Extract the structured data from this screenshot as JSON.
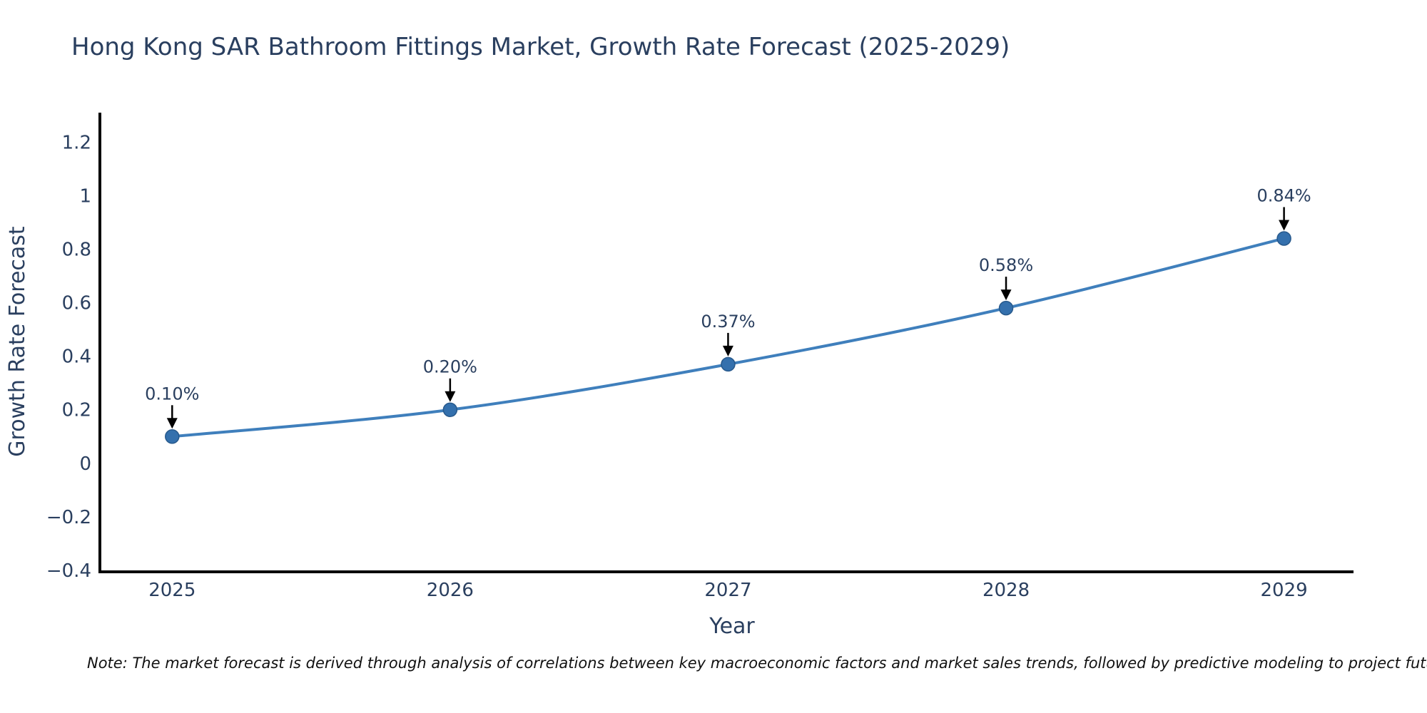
{
  "title": "Hong Kong SAR Bathroom Fittings Market, Growth Rate Forecast (2025-2029)",
  "note": "Note: The market forecast is derived through analysis of correlations between key macroeconomic factors and market sales trends, followed by predictive modeling to project future sales.",
  "chart_data": {
    "type": "line",
    "title": "Hong Kong SAR Bathroom Fittings Market, Growth Rate Forecast (2025-2029)",
    "xlabel": "Year",
    "ylabel": "Growth Rate Forecast",
    "x": [
      2025,
      2026,
      2027,
      2028,
      2029
    ],
    "series": [
      {
        "name": "Growth Rate Forecast",
        "values": [
          0.1,
          0.2,
          0.37,
          0.58,
          0.84
        ]
      }
    ],
    "point_labels": [
      "0.10%",
      "0.20%",
      "0.37%",
      "0.58%",
      "0.84%"
    ],
    "xticks": [
      2025,
      2026,
      2027,
      2028,
      2029
    ],
    "xtick_labels": [
      "2025",
      "2026",
      "2027",
      "2028",
      "2029"
    ],
    "yticks": [
      -0.4,
      -0.2,
      0,
      0.2,
      0.4,
      0.6,
      0.8,
      1,
      1.2
    ],
    "ytick_labels": [
      "−0.4",
      "−0.2",
      "0",
      "0.2",
      "0.4",
      "0.6",
      "0.8",
      "1",
      "1.2"
    ],
    "xlim": [
      2024.74,
      2029.25
    ],
    "ylim": [
      -0.4,
      1.31
    ],
    "grid": false,
    "legend": "none",
    "marker_size": 9.5,
    "colors": {
      "line": "#3f7fbc",
      "marker_fill": "#3470ad",
      "marker_edge": "#27598c",
      "axis_line": "#000000",
      "text": "#2a3f5f",
      "arrow": "#000000",
      "note_text": "#111111"
    }
  }
}
